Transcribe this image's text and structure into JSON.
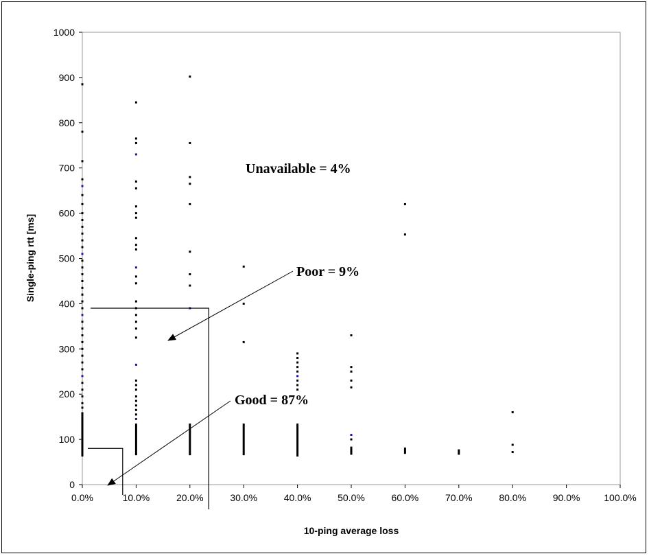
{
  "chart_data": {
    "type": "scatter",
    "xlabel": "10-ping average loss",
    "ylabel": "Single-ping rtt [ms]",
    "xlim": [
      0,
      100
    ],
    "ylim": [
      0,
      1000
    ],
    "x_ticks": [
      "0.0%",
      "10.0%",
      "20.0%",
      "30.0%",
      "40.0%",
      "50.0%",
      "60.0%",
      "70.0%",
      "80.0%",
      "90.0%",
      "100.0%"
    ],
    "y_ticks": [
      "0",
      "100",
      "200",
      "300",
      "400",
      "500",
      "600",
      "700",
      "800",
      "900",
      "1000"
    ],
    "grid": false,
    "colors": {
      "points": "#000000",
      "points_alt": "#1a1aa0",
      "lines": "#000000"
    },
    "annotations": {
      "unavailable": "Unavailable = 4%",
      "poor": "Poor = 9%",
      "good": "Good = 87%"
    },
    "regions": {
      "good": {
        "x_max": 7.5,
        "y_max": 80
      },
      "poor": {
        "x_max": 23.5,
        "y_max": 390
      }
    },
    "series": [
      {
        "points": [
          [
            0,
            885
          ],
          [
            0,
            780
          ],
          [
            0,
            715
          ],
          [
            0,
            675
          ],
          [
            0,
            660
          ],
          [
            0,
            640
          ],
          [
            0,
            620
          ],
          [
            0,
            600
          ],
          [
            0,
            585
          ],
          [
            0,
            570
          ],
          [
            0,
            555
          ],
          [
            0,
            540
          ],
          [
            0,
            525
          ],
          [
            0,
            510
          ],
          [
            0,
            495
          ],
          [
            0,
            480
          ],
          [
            0,
            465
          ],
          [
            0,
            450
          ],
          [
            0,
            435
          ],
          [
            0,
            420
          ],
          [
            0,
            405
          ],
          [
            0,
            390
          ],
          [
            0,
            375
          ],
          [
            0,
            360
          ],
          [
            0,
            345
          ],
          [
            0,
            330
          ],
          [
            0,
            315
          ],
          [
            0,
            300
          ],
          [
            0,
            285
          ],
          [
            0,
            270
          ],
          [
            0,
            255
          ],
          [
            0,
            240
          ],
          [
            0,
            225
          ],
          [
            0,
            210
          ],
          [
            0,
            195
          ],
          [
            0,
            180
          ],
          [
            0,
            170
          ],
          [
            10,
            845
          ],
          [
            10,
            765
          ],
          [
            10,
            755
          ],
          [
            10,
            730
          ],
          [
            10,
            670
          ],
          [
            10,
            655
          ],
          [
            10,
            615
          ],
          [
            10,
            600
          ],
          [
            10,
            590
          ],
          [
            10,
            545
          ],
          [
            10,
            530
          ],
          [
            10,
            520
          ],
          [
            10,
            480
          ],
          [
            10,
            460
          ],
          [
            10,
            445
          ],
          [
            10,
            405
          ],
          [
            10,
            390
          ],
          [
            10,
            375
          ],
          [
            10,
            360
          ],
          [
            10,
            345
          ],
          [
            10,
            325
          ],
          [
            10,
            265
          ],
          [
            10,
            230
          ],
          [
            10,
            220
          ],
          [
            10,
            210
          ],
          [
            10,
            195
          ],
          [
            10,
            185
          ],
          [
            10,
            175
          ],
          [
            10,
            165
          ],
          [
            10,
            155
          ],
          [
            10,
            145
          ],
          [
            20,
            902
          ],
          [
            20,
            755
          ],
          [
            20,
            680
          ],
          [
            20,
            665
          ],
          [
            20,
            620
          ],
          [
            20,
            515
          ],
          [
            20,
            465
          ],
          [
            20,
            440
          ],
          [
            20,
            390
          ],
          [
            30,
            482
          ],
          [
            30,
            400
          ],
          [
            30,
            315
          ],
          [
            40,
            290
          ],
          [
            40,
            280
          ],
          [
            40,
            270
          ],
          [
            40,
            260
          ],
          [
            40,
            250
          ],
          [
            40,
            240
          ],
          [
            40,
            230
          ],
          [
            40,
            220
          ],
          [
            40,
            210
          ],
          [
            50,
            330
          ],
          [
            50,
            260
          ],
          [
            50,
            250
          ],
          [
            50,
            230
          ],
          [
            50,
            215
          ],
          [
            50,
            110
          ],
          [
            50,
            100
          ],
          [
            60,
            620
          ],
          [
            60,
            553
          ],
          [
            80,
            160
          ],
          [
            80,
            88
          ],
          [
            80,
            72
          ]
        ]
      }
    ],
    "bands": [
      {
        "x": 0,
        "y_min": 62,
        "y_max": 160
      },
      {
        "x": 10,
        "y_min": 65,
        "y_max": 135
      },
      {
        "x": 20,
        "y_min": 65,
        "y_max": 135
      },
      {
        "x": 30,
        "y_min": 65,
        "y_max": 135
      },
      {
        "x": 40,
        "y_min": 62,
        "y_max": 135
      },
      {
        "x": 50,
        "y_min": 66,
        "y_max": 84
      },
      {
        "x": 60,
        "y_min": 68,
        "y_max": 82
      },
      {
        "x": 70,
        "y_min": 66,
        "y_max": 78
      }
    ]
  }
}
